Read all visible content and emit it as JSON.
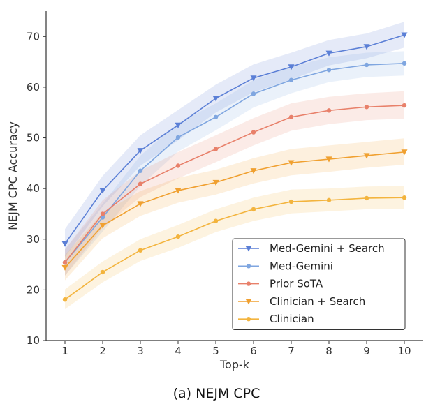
{
  "caption": "(a) NEJM CPC",
  "chart_data": {
    "type": "line",
    "xlabel": "Top-k",
    "ylabel": "NEJM CPC Accuracy",
    "x": [
      1,
      2,
      3,
      4,
      5,
      6,
      7,
      8,
      9,
      10
    ],
    "xlim": [
      0.5,
      10.5
    ],
    "ylim": [
      10,
      75
    ],
    "yticks": [
      10,
      20,
      30,
      40,
      50,
      60,
      70
    ],
    "grid": false,
    "legend_position": "bottom-right",
    "series": [
      {
        "name": "Med-Gemini + Search",
        "color": "#5b7fd6",
        "marker": "triangle-down",
        "values": [
          29.1,
          39.6,
          47.5,
          52.5,
          57.8,
          61.8,
          64.0,
          66.7,
          68.0,
          70.3
        ],
        "band_lower": [
          26.5,
          36.5,
          44.5,
          49.5,
          55.0,
          59.0,
          61.5,
          64.3,
          65.7,
          67.8
        ],
        "band_upper": [
          32.0,
          42.5,
          50.5,
          55.5,
          60.5,
          64.5,
          66.8,
          69.3,
          70.6,
          72.9
        ]
      },
      {
        "name": "Med-Gemini",
        "color": "#7fa6e0",
        "marker": "circle",
        "values": [
          25.4,
          34.3,
          43.5,
          50.1,
          54.1,
          58.7,
          61.4,
          63.4,
          64.4,
          64.7
        ],
        "band_lower": [
          22.8,
          31.5,
          40.5,
          47.3,
          51.5,
          56.0,
          58.8,
          61.0,
          62.0,
          62.3
        ],
        "band_upper": [
          28.0,
          37.0,
          46.5,
          52.9,
          56.8,
          61.4,
          64.0,
          65.9,
          66.8,
          67.1
        ]
      },
      {
        "name": "Prior SoTA",
        "color": "#e8806a",
        "marker": "circle",
        "values": [
          25.4,
          35.0,
          40.9,
          44.5,
          47.8,
          51.1,
          54.1,
          55.4,
          56.1,
          56.4
        ],
        "band_lower": [
          22.8,
          32.3,
          38.3,
          42.0,
          45.2,
          48.5,
          51.4,
          52.7,
          53.5,
          53.8
        ],
        "band_upper": [
          28.0,
          37.7,
          43.5,
          47.2,
          50.5,
          53.9,
          56.8,
          58.1,
          58.8,
          59.2
        ]
      },
      {
        "name": "Clinician + Search",
        "color": "#f0a030",
        "marker": "triangle-down",
        "values": [
          24.4,
          32.7,
          37.0,
          39.6,
          41.2,
          43.5,
          45.1,
          45.8,
          46.5,
          47.2
        ],
        "band_lower": [
          21.9,
          30.2,
          34.6,
          37.2,
          38.8,
          41.0,
          42.6,
          43.3,
          44.1,
          44.7
        ],
        "band_upper": [
          26.9,
          35.2,
          39.5,
          42.1,
          43.7,
          46.0,
          47.8,
          48.5,
          49.2,
          49.9
        ]
      },
      {
        "name": "Clinician",
        "color": "#f3b43e",
        "marker": "circle",
        "values": [
          18.1,
          23.5,
          27.8,
          30.5,
          33.6,
          35.9,
          37.4,
          37.7,
          38.1,
          38.2
        ],
        "band_lower": [
          16.2,
          21.5,
          25.7,
          28.3,
          31.4,
          33.6,
          35.1,
          35.5,
          35.9,
          36.0
        ],
        "band_upper": [
          20.1,
          25.6,
          30.0,
          32.8,
          35.9,
          38.2,
          39.8,
          40.0,
          40.4,
          40.5
        ]
      }
    ]
  }
}
